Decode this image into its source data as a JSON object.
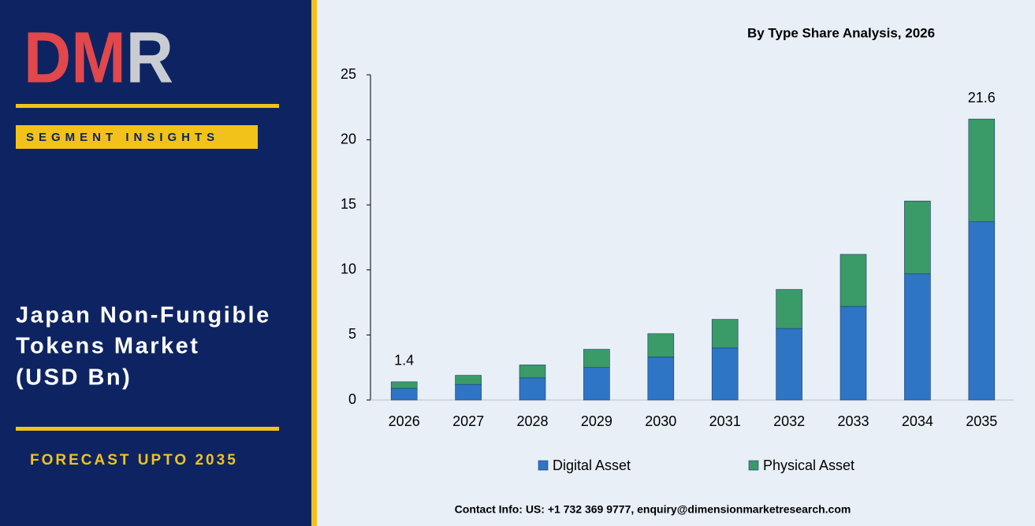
{
  "sidebar": {
    "logo": "DMR",
    "badge": "SEGMENT INSIGHTS",
    "title": [
      "Japan Non-Fungible",
      "Tokens Market",
      "(USD Bn)"
    ],
    "forecast": "FORECAST UPTO 2035"
  },
  "chart_data": {
    "type": "stacked_bar",
    "title": "By Type Share Analysis, 2026",
    "categories": [
      "2026",
      "2027",
      "2028",
      "2029",
      "2030",
      "2031",
      "2032",
      "2033",
      "2034",
      "2035"
    ],
    "series": [
      {
        "name": "Digital Asset",
        "color": "#2e75c6",
        "values": [
          0.9,
          1.2,
          1.7,
          2.5,
          3.3,
          4.0,
          5.5,
          7.2,
          9.7,
          13.7
        ]
      },
      {
        "name": "Physical Asset",
        "color": "#3a9a68",
        "values": [
          0.5,
          0.7,
          1.0,
          1.4,
          1.8,
          2.2,
          3.0,
          4.0,
          5.6,
          7.9
        ]
      }
    ],
    "total_labels": [
      {
        "category": "2026",
        "value": 1.4
      },
      {
        "category": "2035",
        "value": 21.6
      }
    ],
    "ylim": [
      0,
      25
    ],
    "yticks": [
      0,
      5,
      10,
      15,
      20,
      25
    ],
    "grid": false,
    "legend": "bottom"
  },
  "footer": "Contact Info: US: +1 732 369 9777, enquiry@dimensionmarketresearch.com"
}
